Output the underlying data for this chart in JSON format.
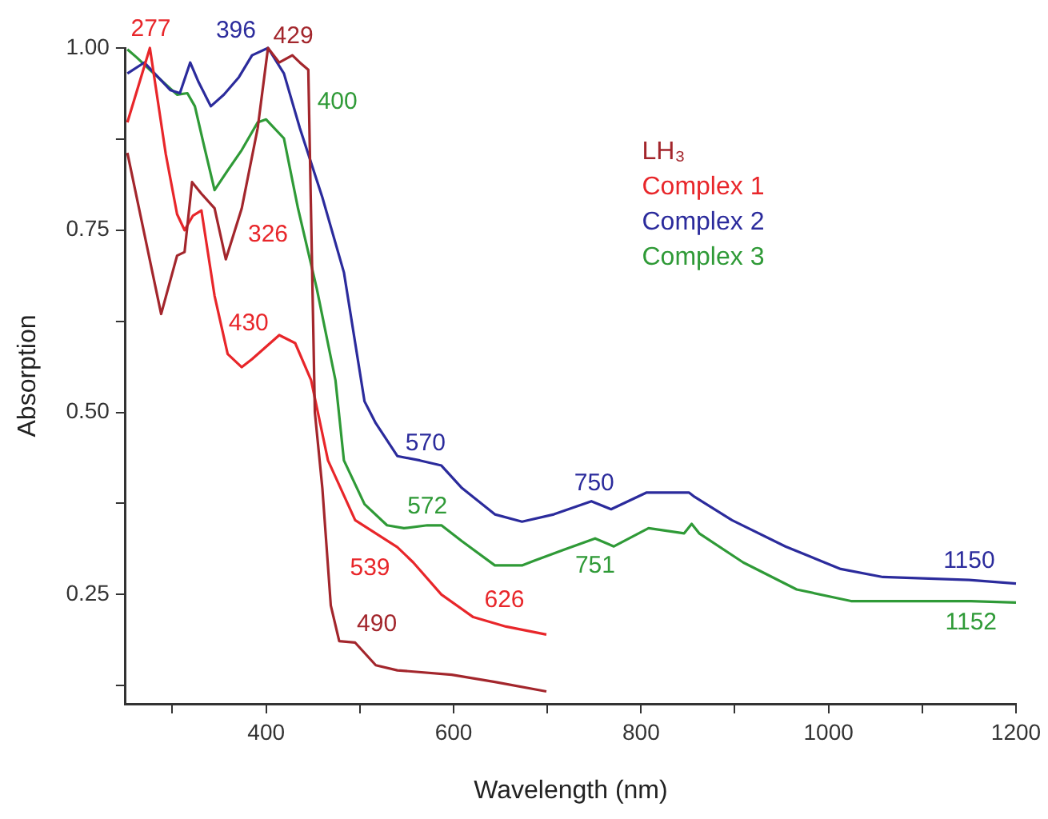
{
  "chart_data": {
    "type": "line",
    "xlabel": "Wavelength (nm)",
    "ylabel": "Absorption",
    "xlim": [
      250,
      1200
    ],
    "ylim": [
      0.1,
      1.0
    ],
    "xticks": [
      {
        "value": 300,
        "label": null
      },
      400,
      {
        "value": 500,
        "label": null
      },
      600,
      {
        "value": 700,
        "label": null
      },
      800,
      {
        "value": 900,
        "label": null
      },
      1000,
      {
        "value": 1100,
        "label": null
      },
      1200
    ],
    "yticks": [
      {
        "value": 0.125,
        "label": null
      },
      {
        "value": 0.25,
        "label": "0.25"
      },
      {
        "value": 0.375,
        "label": null
      },
      {
        "value": 0.5,
        "label": "0.50"
      },
      {
        "value": 0.625,
        "label": null
      },
      {
        "value": 0.75,
        "label": "0.75"
      },
      {
        "value": 0.875,
        "label": null
      },
      {
        "value": 1.0,
        "label": "1.00"
      }
    ],
    "annotations": [
      {
        "text": "277",
        "x": 277,
        "y": 1.0
      },
      {
        "text": "326",
        "x": 326,
        "y": 0.773
      },
      {
        "text": "430",
        "x": 430,
        "y": 0.596
      },
      {
        "text": "539",
        "x": 539,
        "y": 0.315
      },
      {
        "text": "626",
        "x": 626,
        "y": 0.217
      },
      {
        "text": "429",
        "x": 429,
        "y": 0.99
      },
      {
        "text": "490",
        "x": 490,
        "y": 0.184
      },
      {
        "text": "396",
        "x": 396,
        "y": 0.998
      },
      {
        "text": "570",
        "x": 570,
        "y": 0.432
      },
      {
        "text": "750",
        "x": 750,
        "y": 0.377
      },
      {
        "text": "1150",
        "x": 1150,
        "y": 0.27
      },
      {
        "text": "400",
        "x": 400,
        "y": 0.9
      },
      {
        "text": "572",
        "x": 572,
        "y": 0.345
      },
      {
        "text": "751",
        "x": 751,
        "y": 0.327
      },
      {
        "text": "1152",
        "x": 1152,
        "y": 0.241
      }
    ],
    "grid": false,
    "legend": "right",
    "marker": "none",
    "line_style": "solid",
    "series": [
      {
        "name": "LH₃",
        "color": "#a3262c",
        "x": [
          252,
          288,
          305,
          313,
          321,
          331,
          345,
          357,
          374,
          391,
          402,
          414,
          428,
          436,
          445,
          452,
          460,
          469,
          478,
          495,
          517,
          540,
          598,
          644,
          699
        ],
        "values": [
          0.856,
          0.635,
          0.715,
          0.72,
          0.816,
          0.8,
          0.78,
          0.71,
          0.78,
          0.89,
          1.0,
          0.98,
          0.99,
          0.98,
          0.97,
          0.5,
          0.396,
          0.235,
          0.186,
          0.184,
          0.153,
          0.146,
          0.14,
          0.13,
          0.117
        ]
      },
      {
        "name": "Complex 1",
        "color": "#e8262a",
        "x": [
          252,
          276,
          293,
          305,
          313,
          322,
          331,
          345,
          359,
          374,
          385,
          414,
          431,
          448,
          466,
          495,
          540,
          557,
          587,
          621,
          656,
          699
        ],
        "values": [
          0.898,
          1.0,
          0.854,
          0.772,
          0.75,
          0.77,
          0.777,
          0.66,
          0.58,
          0.562,
          0.573,
          0.606,
          0.595,
          0.544,
          0.434,
          0.352,
          0.315,
          0.294,
          0.25,
          0.219,
          0.206,
          0.195
        ]
      },
      {
        "name": "Complex 2",
        "color": "#2b2b9c",
        "x": [
          252,
          270,
          298,
          308,
          319,
          328,
          341,
          355,
          371,
          385,
          402,
          419,
          436,
          460,
          483,
          505,
          517,
          540,
          564,
          587,
          609,
          644,
          673,
          707,
          747,
          768,
          806,
          851,
          856,
          897,
          954,
          1013,
          1058,
          1150,
          1200
        ],
        "values": [
          0.965,
          0.98,
          0.942,
          0.938,
          0.98,
          0.953,
          0.92,
          0.936,
          0.96,
          0.99,
          1.0,
          0.965,
          0.89,
          0.795,
          0.692,
          0.515,
          0.485,
          0.44,
          0.434,
          0.427,
          0.396,
          0.36,
          0.35,
          0.36,
          0.378,
          0.367,
          0.39,
          0.39,
          0.385,
          0.352,
          0.316,
          0.285,
          0.274,
          0.27,
          0.265
        ]
      },
      {
        "name": "Complex 3",
        "color": "#2f9a37",
        "x": [
          252,
          262,
          276,
          305,
          316,
          324,
          333,
          345,
          359,
          374,
          391,
          400,
          419,
          434,
          454,
          474,
          483,
          505,
          529,
          547,
          572,
          587,
          609,
          644,
          673,
          685,
          719,
          751,
          771,
          808,
          846,
          854,
          862,
          909,
          966,
          1024,
          1152,
          1200
        ],
        "values": [
          0.998,
          0.987,
          0.97,
          0.936,
          0.938,
          0.92,
          0.87,
          0.805,
          0.832,
          0.86,
          0.898,
          0.902,
          0.876,
          0.78,
          0.67,
          0.544,
          0.434,
          0.374,
          0.345,
          0.341,
          0.345,
          0.345,
          0.323,
          0.29,
          0.29,
          0.296,
          0.312,
          0.327,
          0.316,
          0.341,
          0.334,
          0.347,
          0.334,
          0.294,
          0.257,
          0.241,
          0.241,
          0.239
        ]
      }
    ]
  }
}
